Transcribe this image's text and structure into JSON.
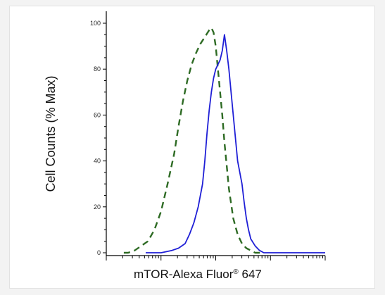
{
  "chart_data": {
    "type": "line",
    "title": "",
    "xlabel_main": "mTOR-Alexa Fluor",
    "xlabel_reg": "®",
    "xlabel_tail": " 647",
    "ylabel": "Cell Counts (% Max)",
    "x_scale": "log",
    "xlim": [
      0.0,
      1.0
    ],
    "ylim": [
      0,
      100
    ],
    "yticks": [
      0,
      20,
      40,
      60,
      80,
      100
    ],
    "grid": false,
    "colors": {
      "control": "#2e6b24",
      "sample": "#1f1fd6",
      "axis": "#000000"
    },
    "series": [
      {
        "line_style": "dashed",
        "color": "#2e6b24",
        "x": [
          0.08,
          0.1,
          0.13,
          0.16,
          0.19,
          0.22,
          0.25,
          0.28,
          0.31,
          0.33,
          0.35,
          0.37,
          0.39,
          0.41,
          0.43,
          0.45,
          0.47,
          0.48,
          0.49,
          0.5,
          0.51,
          0.52,
          0.53,
          0.54,
          0.55,
          0.56,
          0.58,
          0.6,
          0.62,
          0.64,
          0.66,
          0.68,
          0.7,
          0.72
        ],
        "y": [
          0,
          0,
          1,
          3,
          5,
          10,
          18,
          30,
          43,
          55,
          66,
          75,
          82,
          87,
          91,
          94,
          97,
          98,
          96,
          90,
          80,
          70,
          60,
          48,
          38,
          28,
          15,
          8,
          4,
          2,
          1,
          0,
          0,
          0
        ]
      },
      {
        "line_style": "solid",
        "color": "#1f1fd6",
        "x": [
          0.18,
          0.25,
          0.3,
          0.33,
          0.36,
          0.38,
          0.4,
          0.42,
          0.44,
          0.45,
          0.46,
          0.47,
          0.48,
          0.49,
          0.5,
          0.51,
          0.52,
          0.53,
          0.54,
          0.55,
          0.56,
          0.57,
          0.58,
          0.59,
          0.6,
          0.62,
          0.63,
          0.64,
          0.65,
          0.66,
          0.68,
          0.7,
          0.72,
          0.75,
          0.8,
          0.9,
          1.0
        ],
        "y": [
          0,
          0,
          1,
          2,
          4,
          8,
          13,
          20,
          30,
          40,
          52,
          62,
          70,
          76,
          80,
          82,
          84,
          88,
          95,
          88,
          80,
          70,
          60,
          50,
          40,
          30,
          22,
          15,
          10,
          6,
          3,
          1,
          0,
          0,
          0,
          0,
          0
        ]
      }
    ]
  }
}
